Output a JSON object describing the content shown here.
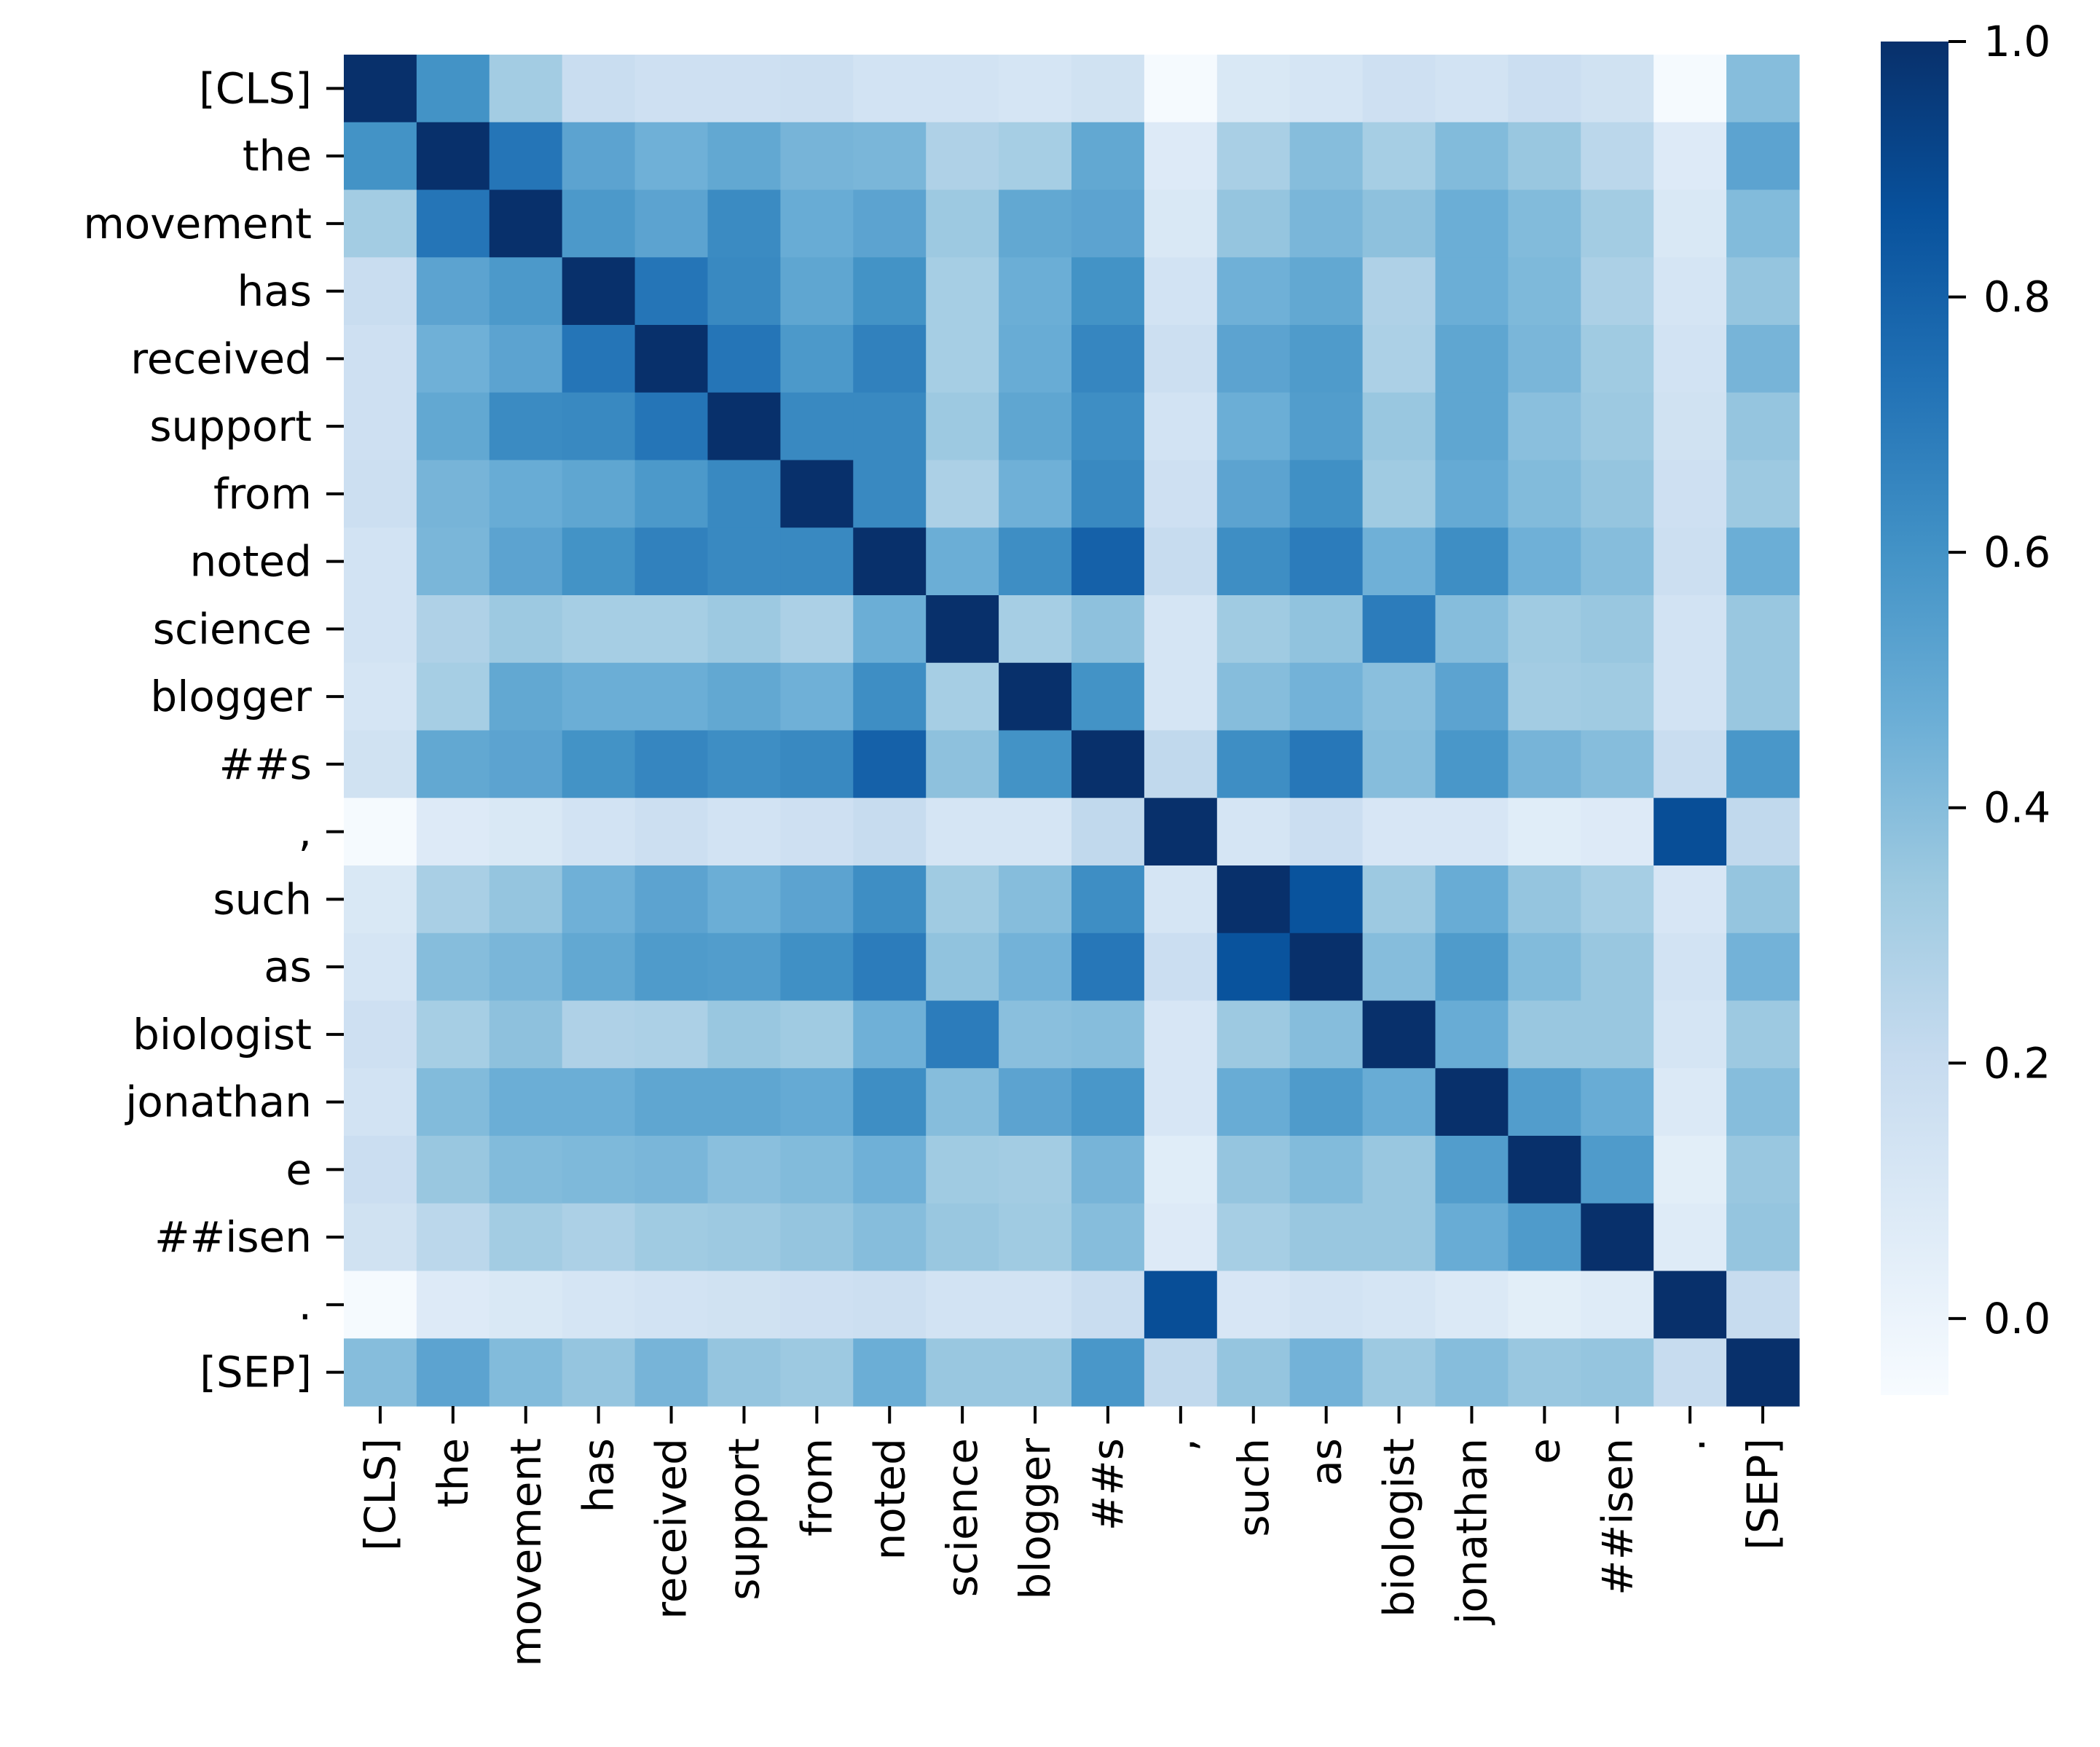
{
  "chart_data": {
    "type": "heatmap",
    "title": "",
    "xlabel": "",
    "ylabel": "",
    "colormap": "Blues",
    "x_tokens": [
      "[CLS]",
      "the",
      "movement",
      "has",
      "received",
      "support",
      "from",
      "noted",
      "science",
      "blogger",
      "##s",
      ",",
      "such",
      "as",
      "biologist",
      "jonathan",
      "e",
      "##isen",
      ".",
      "[SEP]"
    ],
    "y_tokens": [
      "[CLS]",
      "the",
      "movement",
      "has",
      "received",
      "support",
      "from",
      "noted",
      "science",
      "blogger",
      "##s",
      ",",
      "such",
      "as",
      "biologist",
      "jonathan",
      "e",
      "##isen",
      ".",
      "[SEP]"
    ],
    "colorbar": {
      "vmin": -0.06,
      "vmax": 1.0,
      "ticks": [
        0.0,
        0.2,
        0.4,
        0.6,
        0.8,
        1.0
      ],
      "tick_labels": [
        "0.0",
        "0.2",
        "0.4",
        "0.6",
        "0.8",
        "1.0"
      ]
    },
    "values": [
      [
        1.0,
        0.6,
        0.32,
        0.19,
        0.16,
        0.16,
        0.17,
        0.14,
        0.14,
        0.12,
        0.15,
        -0.05,
        0.1,
        0.12,
        0.16,
        0.14,
        0.18,
        0.15,
        -0.05,
        0.4
      ],
      [
        0.6,
        1.0,
        0.72,
        0.52,
        0.46,
        0.5,
        0.44,
        0.43,
        0.28,
        0.31,
        0.5,
        0.08,
        0.3,
        0.4,
        0.31,
        0.41,
        0.35,
        0.24,
        0.08,
        0.52
      ],
      [
        0.32,
        0.72,
        1.0,
        0.57,
        0.52,
        0.63,
        0.48,
        0.52,
        0.34,
        0.5,
        0.52,
        0.1,
        0.36,
        0.43,
        0.38,
        0.47,
        0.41,
        0.32,
        0.1,
        0.41
      ],
      [
        0.19,
        0.52,
        0.57,
        1.0,
        0.72,
        0.64,
        0.51,
        0.6,
        0.31,
        0.47,
        0.6,
        0.14,
        0.46,
        0.5,
        0.28,
        0.47,
        0.42,
        0.29,
        0.12,
        0.36
      ],
      [
        0.16,
        0.46,
        0.52,
        0.72,
        1.0,
        0.72,
        0.57,
        0.67,
        0.31,
        0.48,
        0.65,
        0.17,
        0.52,
        0.56,
        0.29,
        0.51,
        0.43,
        0.33,
        0.14,
        0.44
      ],
      [
        0.16,
        0.5,
        0.63,
        0.64,
        0.72,
        1.0,
        0.64,
        0.64,
        0.34,
        0.51,
        0.62,
        0.14,
        0.47,
        0.55,
        0.35,
        0.51,
        0.39,
        0.34,
        0.15,
        0.36
      ],
      [
        0.17,
        0.44,
        0.48,
        0.51,
        0.57,
        0.64,
        1.0,
        0.64,
        0.29,
        0.46,
        0.64,
        0.16,
        0.52,
        0.61,
        0.33,
        0.49,
        0.41,
        0.36,
        0.16,
        0.34
      ],
      [
        0.14,
        0.43,
        0.52,
        0.6,
        0.67,
        0.64,
        0.64,
        1.0,
        0.47,
        0.62,
        0.8,
        0.2,
        0.62,
        0.69,
        0.46,
        0.62,
        0.46,
        0.4,
        0.17,
        0.47
      ],
      [
        0.14,
        0.28,
        0.34,
        0.31,
        0.31,
        0.34,
        0.29,
        0.47,
        1.0,
        0.31,
        0.38,
        0.12,
        0.33,
        0.37,
        0.69,
        0.4,
        0.33,
        0.35,
        0.14,
        0.35
      ],
      [
        0.12,
        0.31,
        0.5,
        0.47,
        0.47,
        0.5,
        0.46,
        0.62,
        0.31,
        1.0,
        0.6,
        0.12,
        0.4,
        0.45,
        0.39,
        0.52,
        0.32,
        0.33,
        0.14,
        0.35
      ],
      [
        0.15,
        0.5,
        0.52,
        0.6,
        0.65,
        0.62,
        0.64,
        0.8,
        0.38,
        0.6,
        1.0,
        0.22,
        0.62,
        0.71,
        0.4,
        0.58,
        0.44,
        0.4,
        0.19,
        0.58
      ],
      [
        -0.05,
        0.08,
        0.1,
        0.14,
        0.17,
        0.14,
        0.16,
        0.2,
        0.12,
        0.12,
        0.22,
        1.0,
        0.12,
        0.18,
        0.11,
        0.11,
        0.06,
        0.08,
        0.88,
        0.22
      ],
      [
        0.1,
        0.3,
        0.36,
        0.46,
        0.52,
        0.47,
        0.52,
        0.62,
        0.33,
        0.4,
        0.62,
        0.12,
        1.0,
        0.86,
        0.34,
        0.48,
        0.36,
        0.31,
        0.11,
        0.36
      ],
      [
        0.12,
        0.4,
        0.43,
        0.5,
        0.56,
        0.55,
        0.61,
        0.69,
        0.37,
        0.45,
        0.71,
        0.18,
        0.86,
        1.0,
        0.4,
        0.56,
        0.41,
        0.35,
        0.14,
        0.45
      ],
      [
        0.16,
        0.31,
        0.38,
        0.28,
        0.29,
        0.35,
        0.33,
        0.46,
        0.69,
        0.39,
        0.4,
        0.11,
        0.34,
        0.4,
        1.0,
        0.48,
        0.35,
        0.35,
        0.12,
        0.34
      ],
      [
        0.14,
        0.41,
        0.47,
        0.47,
        0.51,
        0.51,
        0.49,
        0.62,
        0.4,
        0.52,
        0.58,
        0.11,
        0.48,
        0.56,
        0.48,
        1.0,
        0.55,
        0.48,
        0.09,
        0.4
      ],
      [
        0.18,
        0.35,
        0.41,
        0.42,
        0.43,
        0.39,
        0.41,
        0.46,
        0.33,
        0.32,
        0.44,
        0.06,
        0.36,
        0.41,
        0.35,
        0.55,
        1.0,
        0.56,
        0.05,
        0.35
      ],
      [
        0.15,
        0.24,
        0.32,
        0.29,
        0.33,
        0.34,
        0.36,
        0.4,
        0.35,
        0.33,
        0.4,
        0.08,
        0.31,
        0.35,
        0.35,
        0.48,
        0.56,
        1.0,
        0.07,
        0.36
      ],
      [
        -0.05,
        0.08,
        0.1,
        0.12,
        0.14,
        0.15,
        0.16,
        0.17,
        0.14,
        0.14,
        0.19,
        0.88,
        0.11,
        0.14,
        0.12,
        0.09,
        0.05,
        0.07,
        1.0,
        0.2
      ],
      [
        0.4,
        0.52,
        0.41,
        0.36,
        0.44,
        0.36,
        0.34,
        0.47,
        0.35,
        0.35,
        0.58,
        0.22,
        0.36,
        0.45,
        0.34,
        0.4,
        0.35,
        0.36,
        0.2,
        1.0
      ]
    ]
  }
}
